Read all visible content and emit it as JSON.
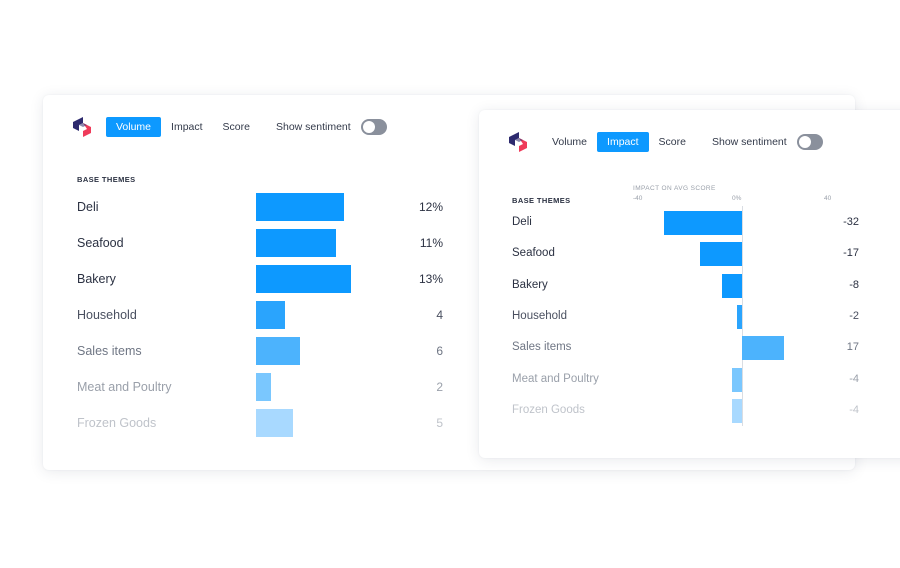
{
  "volume_card": {
    "tabs": [
      {
        "label": "Volume",
        "active": true
      },
      {
        "label": "Impact",
        "active": false
      },
      {
        "label": "Score",
        "active": false
      }
    ],
    "sentiment_label": "Show sentiment",
    "sentiment_on": false
  },
  "impact_card": {
    "tabs": [
      {
        "label": "Volume",
        "active": false
      },
      {
        "label": "Impact",
        "active": true
      },
      {
        "label": "Score",
        "active": false
      }
    ],
    "sentiment_label": "Show sentiment",
    "sentiment_on": false
  },
  "colors": {
    "accent": "#0d99ff",
    "logo_dark": "#2d2a6e",
    "logo_red": "#ef3b5a"
  },
  "chart_data": [
    {
      "type": "bar",
      "orientation": "horizontal",
      "section_title": "BASE THEMES",
      "categories": [
        "Deli",
        "Seafood",
        "Bakery",
        "Household",
        "Sales items",
        "Meat and Poultry",
        "Frozen Goods"
      ],
      "values": [
        12,
        11,
        13,
        4,
        6,
        2,
        5
      ],
      "value_labels": [
        "12%",
        "11%",
        "13%",
        "4",
        "6",
        "2",
        "5"
      ]
    },
    {
      "type": "bar",
      "orientation": "horizontal-diverging",
      "section_title": "BASE THEMES",
      "axis_title": "IMPACT ON AVG SCORE",
      "ticks": [
        "-40",
        "0%",
        "40"
      ],
      "xlim": [
        -40,
        40
      ],
      "categories": [
        "Deli",
        "Seafood",
        "Bakery",
        "Household",
        "Sales items",
        "Meat and Poultry",
        "Frozen Goods"
      ],
      "values": [
        -32,
        -17,
        -8,
        -2,
        17,
        -4,
        -4
      ],
      "value_labels": [
        "-32",
        "-17",
        "-8",
        "-2",
        "17",
        "-4",
        "-4"
      ]
    }
  ]
}
